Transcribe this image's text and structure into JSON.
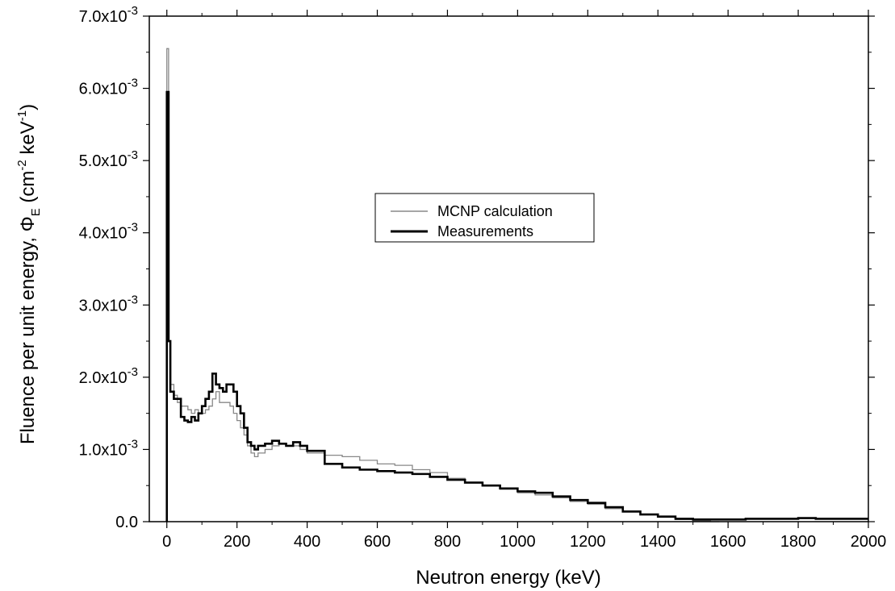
{
  "chart_data": {
    "type": "line",
    "line_shape": "step",
    "xlabel": "Neutron energy (keV)",
    "ylabel": "Fluence per unit energy, Φ",
    "ylabel_sub": "E",
    "ylabel_unit_pre": " (cm",
    "ylabel_sup1": "-2",
    "ylabel_unit_mid": " keV",
    "ylabel_sup2": "-1",
    "ylabel_unit_post": ")",
    "xlim": [
      -50,
      2000
    ],
    "ylim": [
      0,
      0.007
    ],
    "x_ticks": [
      0,
      200,
      400,
      600,
      800,
      1000,
      1200,
      1400,
      1600,
      1800,
      2000
    ],
    "x_tick_labels": [
      "0",
      "200",
      "400",
      "600",
      "800",
      "1000",
      "1200",
      "1400",
      "1600",
      "1800",
      "2000"
    ],
    "y_ticks": [
      0,
      0.001,
      0.002,
      0.003,
      0.004,
      0.005,
      0.006,
      0.007
    ],
    "y_tick_labels": [
      {
        "mantissa": "0.0",
        "exp": ""
      },
      {
        "mantissa": "1.0x10",
        "exp": "-3"
      },
      {
        "mantissa": "2.0x10",
        "exp": "-3"
      },
      {
        "mantissa": "3.0x10",
        "exp": "-3"
      },
      {
        "mantissa": "4.0x10",
        "exp": "-3"
      },
      {
        "mantissa": "5.0x10",
        "exp": "-3"
      },
      {
        "mantissa": "6.0x10",
        "exp": "-3"
      },
      {
        "mantissa": "7.0x10",
        "exp": "-3"
      }
    ],
    "legend_position": "center",
    "grid": false,
    "series": [
      {
        "name": "MCNP calculation",
        "color": "#888888",
        "x": [
          0,
          5,
          10,
          20,
          30,
          40,
          50,
          60,
          70,
          80,
          90,
          100,
          110,
          120,
          130,
          140,
          150,
          160,
          170,
          180,
          190,
          200,
          210,
          220,
          230,
          240,
          250,
          260,
          280,
          300,
          320,
          340,
          360,
          380,
          400,
          450,
          500,
          550,
          600,
          650,
          700,
          750,
          800,
          850,
          900,
          950,
          1000,
          1050,
          1100,
          1150,
          1200,
          1250,
          1300,
          1350,
          1400,
          1450,
          1500,
          1550
        ],
        "values": [
          0.00655,
          0.0025,
          0.0019,
          0.00175,
          0.00165,
          0.0016,
          0.0016,
          0.00155,
          0.0015,
          0.00155,
          0.0015,
          0.0015,
          0.00155,
          0.0016,
          0.0017,
          0.0018,
          0.00165,
          0.00165,
          0.00165,
          0.0016,
          0.0015,
          0.0014,
          0.0013,
          0.0012,
          0.00105,
          0.00095,
          0.0009,
          0.00095,
          0.001,
          0.00105,
          0.00108,
          0.00105,
          0.00105,
          0.001,
          0.00095,
          0.00092,
          0.0009,
          0.00085,
          0.0008,
          0.00078,
          0.00072,
          0.00068,
          0.0006,
          0.00055,
          0.0005,
          0.00045,
          0.0004,
          0.00037,
          0.00033,
          0.00028,
          0.00024,
          0.00018,
          0.00014,
          0.0001,
          6e-05,
          3e-05,
          1e-05,
          0
        ]
      },
      {
        "name": "Measurements",
        "color": "#000000",
        "x": [
          0,
          5,
          10,
          20,
          30,
          40,
          50,
          60,
          70,
          80,
          90,
          100,
          110,
          120,
          130,
          140,
          150,
          160,
          170,
          180,
          190,
          200,
          210,
          220,
          230,
          240,
          250,
          260,
          280,
          300,
          320,
          340,
          360,
          380,
          400,
          450,
          500,
          550,
          600,
          650,
          700,
          750,
          800,
          850,
          900,
          950,
          1000,
          1050,
          1100,
          1150,
          1200,
          1250,
          1300,
          1350,
          1400,
          1450,
          1500,
          1550,
          1600,
          1650,
          1700,
          1750,
          1800,
          1850,
          1900,
          1950,
          2000
        ],
        "values": [
          0.00595,
          0.0025,
          0.0018,
          0.0017,
          0.0017,
          0.00145,
          0.0014,
          0.00138,
          0.00145,
          0.0014,
          0.0015,
          0.0016,
          0.0017,
          0.0018,
          0.00205,
          0.0019,
          0.00185,
          0.0018,
          0.0019,
          0.0019,
          0.0018,
          0.0016,
          0.0015,
          0.0013,
          0.0011,
          0.00105,
          0.001,
          0.00105,
          0.00108,
          0.00112,
          0.00108,
          0.00105,
          0.0011,
          0.00105,
          0.00098,
          0.0008,
          0.00075,
          0.00072,
          0.0007,
          0.00068,
          0.00066,
          0.00062,
          0.00058,
          0.00054,
          0.0005,
          0.00046,
          0.00042,
          0.0004,
          0.00035,
          0.0003,
          0.00026,
          0.0002,
          0.00014,
          0.0001,
          7e-05,
          4e-05,
          3e-05,
          3e-05,
          3e-05,
          4e-05,
          4e-05,
          4e-05,
          5e-05,
          4e-05,
          4e-05,
          4e-05,
          4e-05
        ]
      }
    ]
  }
}
